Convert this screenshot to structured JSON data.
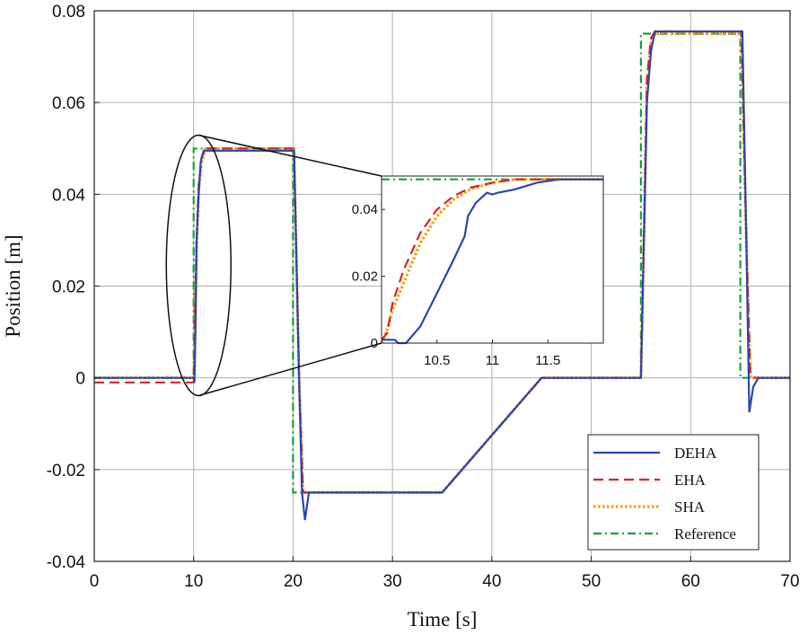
{
  "colors": {
    "DEHA": "#2a46b0",
    "EHA": "#e02020",
    "SHA": "#f5a000",
    "Reference": "#17a03a",
    "grid": "#b0b0b0",
    "axis": "#222222"
  },
  "chart_data": {
    "type": "line",
    "xlabel": "Time [s]",
    "ylabel": "Position [m]",
    "xlim": [
      0,
      70
    ],
    "ylim": [
      -0.04,
      0.08
    ],
    "xticks": [
      0,
      10,
      20,
      30,
      40,
      50,
      60,
      70
    ],
    "yticks": [
      -0.04,
      -0.02,
      0,
      0.02,
      0.04,
      0.06,
      0.08
    ],
    "xtick_labels": [
      "0",
      "10",
      "20",
      "30",
      "40",
      "50",
      "60",
      "70"
    ],
    "ytick_labels": [
      "-0.04",
      "-0.02",
      "0",
      "0.02",
      "0.04",
      "0.06",
      "0.08"
    ],
    "grid": true,
    "legend": {
      "placement": "bottom-right",
      "entries": [
        "DEHA",
        "EHA",
        "SHA",
        "Reference"
      ]
    },
    "series": [
      {
        "name": "DEHA",
        "style": "solid",
        "x": [
          0,
          10.0,
          10.08,
          10.18,
          10.3,
          10.5,
          10.7,
          10.8,
          11,
          20.1,
          20.6,
          20.9,
          21.2,
          21.6,
          35,
          45,
          55,
          55.2,
          55.6,
          56,
          56.4,
          65.2,
          65.6,
          65.9,
          66.3,
          66.8,
          70
        ],
        "y": [
          0,
          0,
          -0.001,
          0.01,
          0.03,
          0.04,
          0.047,
          0.048,
          0.0495,
          0.0495,
          0.0,
          -0.025,
          -0.031,
          -0.025,
          -0.025,
          0,
          0,
          0.02,
          0.06,
          0.071,
          0.0755,
          0.0755,
          0.03,
          -0.0075,
          -0.002,
          0,
          0
        ]
      },
      {
        "name": "EHA",
        "style": "dashed",
        "x": [
          0,
          10.0,
          10.1,
          10.3,
          10.5,
          10.8,
          11.2,
          20.1,
          20.6,
          21.0,
          35,
          45,
          55,
          55.2,
          55.6,
          56,
          56.4,
          65.1,
          65.6,
          66.0,
          66.5,
          70
        ],
        "y": [
          -0.001,
          -0.001,
          0.01,
          0.03,
          0.042,
          0.048,
          0.05,
          0.05,
          0.0,
          -0.025,
          -0.025,
          0,
          0,
          0.02,
          0.065,
          0.074,
          0.0755,
          0.0755,
          0.03,
          0.001,
          0,
          0
        ]
      },
      {
        "name": "SHA",
        "style": "dotted",
        "x": [
          0,
          10.0,
          10.1,
          10.3,
          10.5,
          10.8,
          11.2,
          20.1,
          20.6,
          21.0,
          35,
          45,
          55,
          55.2,
          55.6,
          56,
          56.4,
          65.1,
          65.6,
          66.0,
          66.5,
          70
        ],
        "y": [
          0,
          0,
          0.008,
          0.028,
          0.041,
          0.047,
          0.05,
          0.05,
          0.0,
          -0.025,
          -0.025,
          0,
          0,
          0.02,
          0.064,
          0.073,
          0.075,
          0.075,
          0.03,
          0.0,
          0,
          0
        ]
      },
      {
        "name": "Reference",
        "style": "dashdot",
        "x": [
          0,
          10,
          10,
          20,
          20,
          35,
          45,
          55,
          55,
          65,
          65,
          70
        ],
        "y": [
          0,
          0,
          0.05,
          0.05,
          -0.025,
          -0.025,
          0,
          0,
          0.075,
          0.075,
          0,
          0
        ]
      }
    ],
    "inset": {
      "xlim": [
        10.0,
        12.0
      ],
      "ylim": [
        0,
        0.05
      ],
      "xticks": [
        10.5,
        11,
        11.5
      ],
      "xtick_labels": [
        "10.5",
        "11",
        "11.5"
      ],
      "yticks": [
        0,
        0.02,
        0.04
      ],
      "ytick_labels": [
        "0",
        "0.02",
        "0.04"
      ],
      "series": [
        {
          "name": "DEHA",
          "x": [
            10.0,
            10.12,
            10.15,
            10.22,
            10.35,
            10.5,
            10.65,
            10.75,
            10.78,
            10.85,
            10.95,
            11.0,
            11.05,
            11.2,
            11.4,
            11.6,
            12.0
          ],
          "y": [
            0.001,
            0.001,
            0,
            0,
            0.005,
            0.015,
            0.025,
            0.032,
            0.038,
            0.042,
            0.045,
            0.0445,
            0.045,
            0.046,
            0.048,
            0.049,
            0.049
          ]
        },
        {
          "name": "EHA",
          "x": [
            10.0,
            10.05,
            10.1,
            10.2,
            10.35,
            10.5,
            10.65,
            10.8,
            11.0,
            11.2,
            11.4,
            12.0
          ],
          "y": [
            0.001,
            0.003,
            0.012,
            0.022,
            0.033,
            0.04,
            0.044,
            0.0465,
            0.048,
            0.049,
            0.049,
            0.049
          ]
        },
        {
          "name": "SHA",
          "x": [
            10.0,
            10.05,
            10.1,
            10.2,
            10.35,
            10.5,
            10.65,
            10.8,
            11.0,
            11.2,
            11.4,
            12.0
          ],
          "y": [
            0.0,
            0.004,
            0.01,
            0.018,
            0.03,
            0.038,
            0.043,
            0.046,
            0.048,
            0.049,
            0.049,
            0.049
          ]
        },
        {
          "name": "Reference",
          "x": [
            10.0,
            12.0
          ],
          "y": [
            0.049,
            0.049
          ]
        }
      ]
    }
  }
}
